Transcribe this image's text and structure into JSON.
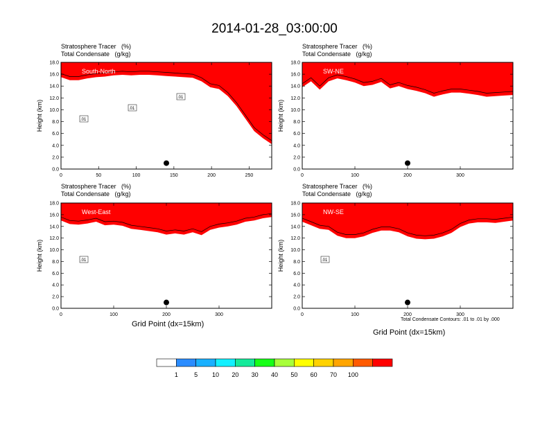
{
  "page": {
    "title": "2014-01-28_03:00:00",
    "contour_note": "Total Condensate Contours: .01 to .01 by .000"
  },
  "colorbar": {
    "colors": [
      "#ffffff",
      "#2a8cff",
      "#19b0ff",
      "#12f0ff",
      "#14ea9a",
      "#17ff17",
      "#a8ff3a",
      "#ffff00",
      "#ffd200",
      "#ffa500",
      "#ff5a00",
      "#ff0000"
    ],
    "labels": [
      "1",
      "5",
      "10",
      "20",
      "30",
      "40",
      "50",
      "60",
      "70",
      "100"
    ]
  },
  "chart_data": [
    {
      "type": "heatmap",
      "line1": "Stratosphere Tracer   (%)",
      "line2": "Total Condensate   (g/kg)",
      "section_label": "South-North",
      "ylabel": "Height (km)",
      "xlabel": "",
      "ylim": [
        0,
        18
      ],
      "xlim": [
        0,
        280
      ],
      "xticks": [
        "0",
        "50",
        "100",
        "150",
        "200",
        "250"
      ],
      "xtick_values": [
        0,
        50,
        100,
        150,
        200,
        250
      ],
      "yticks": [
        "0.0",
        "2.0",
        "4.0",
        "6.0",
        "8.0",
        "10.0",
        "12.0",
        "14.0",
        "16.0",
        "18.0"
      ],
      "grid": false,
      "tracer_base_km": [
        15.5,
        15.0,
        15.0,
        15.3,
        15.5,
        15.6,
        15.8,
        15.9,
        15.8,
        15.9,
        15.9,
        15.8,
        15.7,
        15.6,
        15.5,
        15.4,
        14.8,
        13.8,
        13.5,
        12.3,
        10.6,
        8.5,
        6.4,
        5.2,
        4.2
      ],
      "contour_labels": [
        ".01",
        ".01",
        ".01"
      ],
      "marker_x": 140,
      "marker_km": 1.0
    },
    {
      "type": "heatmap",
      "line1": "Stratosphere Tracer   (%)",
      "line2": "Total Condensate   (g/kg)",
      "section_label": "SW-NE",
      "ylabel": "Height (km)",
      "xlabel": "",
      "ylim": [
        0,
        18
      ],
      "xlim": [
        0,
        400
      ],
      "xticks": [
        "0",
        "100",
        "200",
        "300"
      ],
      "xtick_values": [
        0,
        100,
        200,
        300
      ],
      "yticks": [
        "0.0",
        "2.0",
        "4.0",
        "6.0",
        "8.0",
        "10.0",
        "12.0",
        "14.0",
        "16.0",
        "18.0"
      ],
      "grid": false,
      "tracer_base_km": [
        13.8,
        14.8,
        13.4,
        14.8,
        15.3,
        15.0,
        14.6,
        14.0,
        14.2,
        14.7,
        13.6,
        14.0,
        13.5,
        13.2,
        12.8,
        12.2,
        12.6,
        12.9,
        12.9,
        12.7,
        12.5,
        12.2,
        12.3,
        12.4,
        12.5
      ],
      "contour_labels": [],
      "marker_x": 200,
      "marker_km": 1.0
    },
    {
      "type": "heatmap",
      "line1": "Stratosphere Tracer   (%)",
      "line2": "Total Condensate   (g/kg)",
      "section_label": "West-East",
      "ylabel": "Height (km)",
      "xlabel": "Grid Point (dx=15km)",
      "ylim": [
        0,
        18
      ],
      "xlim": [
        0,
        400
      ],
      "xticks": [
        "0",
        "100",
        "200",
        "300"
      ],
      "xtick_values": [
        0,
        100,
        200,
        300
      ],
      "yticks": [
        "0.0",
        "2.0",
        "4.0",
        "6.0",
        "8.0",
        "10.0",
        "12.0",
        "14.0",
        "16.0",
        "18.0"
      ],
      "grid": false,
      "tracer_base_km": [
        15.0,
        14.4,
        14.3,
        14.5,
        14.8,
        14.2,
        14.3,
        14.1,
        13.6,
        13.4,
        13.2,
        13.0,
        12.6,
        12.8,
        12.6,
        13.0,
        12.5,
        13.4,
        13.8,
        14.0,
        14.3,
        14.8,
        15.0,
        15.4,
        15.6
      ],
      "contour_labels": [
        ".01"
      ],
      "marker_x": 200,
      "marker_km": 1.0
    },
    {
      "type": "heatmap",
      "line1": "Stratosphere Tracer   (%)",
      "line2": "Total Condensate   (g/kg)",
      "section_label": "NW-SE",
      "ylabel": "Height (km)",
      "xlabel": "Grid Point (dx=15km)",
      "ylim": [
        0,
        18
      ],
      "xlim": [
        0,
        400
      ],
      "xticks": [
        "0",
        "100",
        "200",
        "300"
      ],
      "xtick_values": [
        0,
        100,
        200,
        300
      ],
      "yticks": [
        "0.0",
        "2.0",
        "4.0",
        "6.0",
        "8.0",
        "10.0",
        "12.0",
        "14.0",
        "16.0",
        "18.0"
      ],
      "grid": false,
      "tracer_base_km": [
        14.8,
        14.2,
        13.6,
        13.4,
        12.4,
        12.0,
        12.0,
        12.3,
        12.9,
        13.3,
        13.3,
        13.0,
        12.3,
        11.9,
        11.8,
        11.9,
        12.3,
        12.9,
        13.9,
        14.5,
        14.7,
        14.7,
        14.6,
        14.8,
        15.0
      ],
      "contour_labels": [
        ".01"
      ],
      "marker_x": 200,
      "marker_km": 1.0
    }
  ]
}
